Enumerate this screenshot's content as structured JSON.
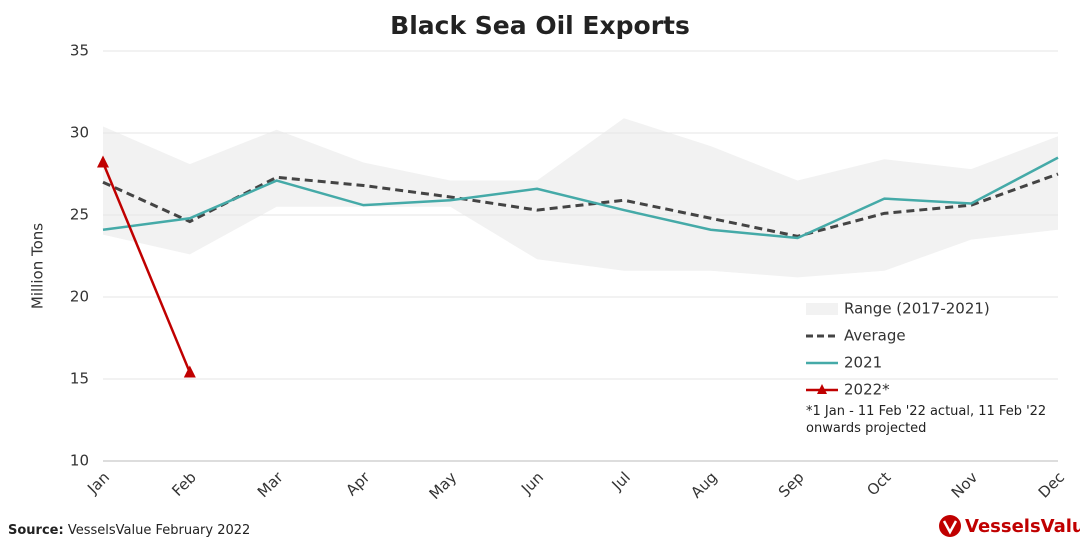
{
  "chart_data": {
    "type": "line",
    "title": "Black Sea Oil Exports",
    "y_label": "Million Tons",
    "categories": [
      "Jan",
      "Feb",
      "Mar",
      "Apr",
      "May",
      "Jun",
      "Jul",
      "Aug",
      "Sep",
      "Oct",
      "Nov",
      "Dec"
    ],
    "range": {
      "name": "Range (2017-2021)",
      "color": "#f2f2f2",
      "upper": [
        30.4,
        28.1,
        30.2,
        28.2,
        27.1,
        27.1,
        30.9,
        29.2,
        27.1,
        28.4,
        27.8,
        29.8
      ],
      "lower": [
        23.8,
        22.6,
        25.5,
        25.5,
        25.5,
        22.3,
        21.6,
        21.6,
        21.2,
        21.6,
        23.5,
        24.1
      ]
    },
    "series": [
      {
        "name": "Average",
        "color": "#444444",
        "dashed": true,
        "values": [
          27.0,
          24.6,
          27.3,
          26.8,
          26.1,
          25.3,
          25.9,
          24.8,
          23.7,
          25.1,
          25.6,
          27.5
        ]
      },
      {
        "name": "2021",
        "color": "#45aaa8",
        "values": [
          24.1,
          24.8,
          27.1,
          25.6,
          25.9,
          26.6,
          25.3,
          24.1,
          23.6,
          26.0,
          25.7,
          28.5
        ]
      },
      {
        "name": "2022*",
        "color": "#c00000",
        "marker": "triangle",
        "values": [
          28.2,
          15.4,
          null,
          null,
          null,
          null,
          null,
          null,
          null,
          null,
          null,
          null
        ]
      }
    ],
    "ylim": [
      10,
      35
    ],
    "yticks": [
      10,
      15,
      20,
      25,
      30,
      35
    ],
    "grid": true,
    "legend": "right",
    "annotation": "*1 Jan - 11 Feb '22 actual, 11 Feb '22 onwards projected",
    "source_label": "Source:",
    "source": "VesselsValue February 2022",
    "logo": "VesselsValue"
  }
}
